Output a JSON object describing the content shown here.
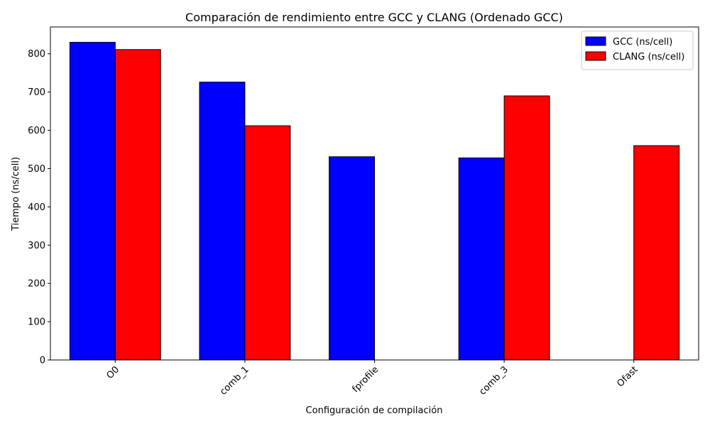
{
  "chart_data": {
    "type": "bar",
    "title": "Comparación de rendimiento entre GCC y CLANG (Ordenado GCC)",
    "xlabel": "Configuración de compilación",
    "ylabel": "Tiempo (ns/cell)",
    "categories": [
      "O0",
      "comb_1",
      "fprofile",
      "comb_3",
      "Ofast"
    ],
    "series": [
      {
        "name": "GCC (ns/cell)",
        "color": "#0000ff",
        "values": [
          830,
          726,
          531,
          528,
          null
        ]
      },
      {
        "name": "CLANG (ns/cell)",
        "color": "#ff0000",
        "values": [
          811,
          612,
          null,
          690,
          560
        ]
      }
    ],
    "ylim": [
      0,
      870
    ],
    "yticks": [
      0,
      100,
      200,
      300,
      400,
      500,
      600,
      700,
      800
    ],
    "legend": "top-right",
    "grid": false,
    "xtick_rotation": 45
  }
}
